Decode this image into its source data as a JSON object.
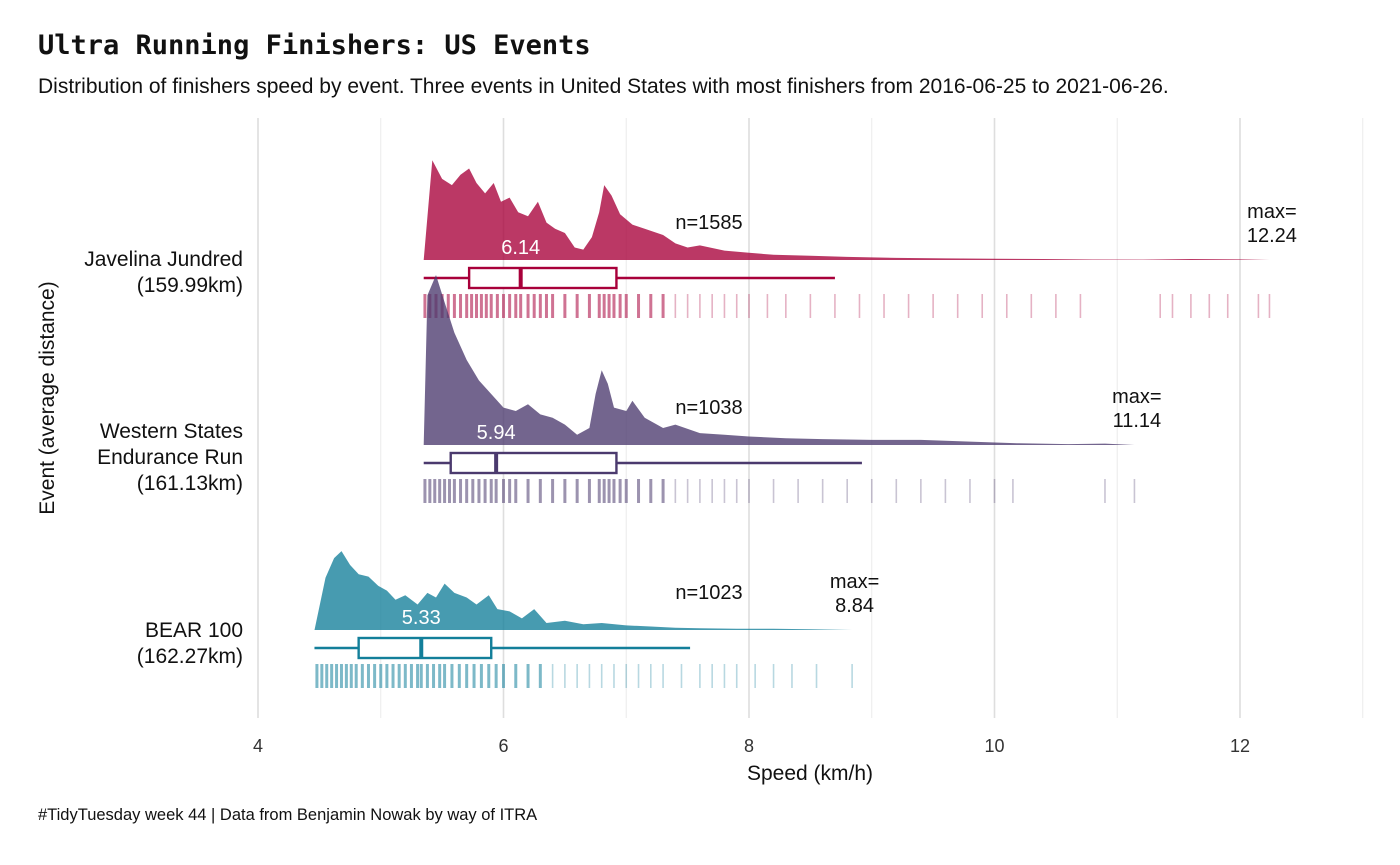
{
  "title": "Ultra Running Finishers: US Events",
  "subtitle": "Distribution of finishers speed by event. Three events in United States with most finishers from 2016-06-25 to 2021-06-26.",
  "caption": "#TidyTuesday week 44 | Data from Benjamin Nowak by way of ITRA",
  "chart_data": {
    "type": "ridgeline",
    "xlabel": "Speed (km/h)",
    "ylabel": "Event (average distance)",
    "xlim": [
      3.6,
      13.0
    ],
    "x_ticks": [
      4,
      6,
      8,
      10,
      12
    ],
    "grid": "vertical",
    "series": [
      {
        "name": "Javelina Jundred",
        "distance": "(159.99km)",
        "color": "#A8003A",
        "n_label": "n=1585",
        "min": 5.35,
        "q1": 5.72,
        "median": 6.14,
        "median_label": "6.14",
        "q3": 6.92,
        "whisker_max": 8.7,
        "max": 12.24,
        "max_label": [
          "max=",
          "12.24"
        ],
        "density": [
          [
            5.35,
            0.0
          ],
          [
            5.42,
            0.96
          ],
          [
            5.5,
            0.78
          ],
          [
            5.58,
            0.72
          ],
          [
            5.65,
            0.82
          ],
          [
            5.72,
            0.88
          ],
          [
            5.78,
            0.74
          ],
          [
            5.85,
            0.64
          ],
          [
            5.92,
            0.74
          ],
          [
            5.98,
            0.56
          ],
          [
            6.05,
            0.6
          ],
          [
            6.12,
            0.46
          ],
          [
            6.2,
            0.42
          ],
          [
            6.28,
            0.56
          ],
          [
            6.35,
            0.36
          ],
          [
            6.42,
            0.3
          ],
          [
            6.5,
            0.26
          ],
          [
            6.58,
            0.12
          ],
          [
            6.65,
            0.1
          ],
          [
            6.72,
            0.22
          ],
          [
            6.78,
            0.46
          ],
          [
            6.82,
            0.72
          ],
          [
            6.88,
            0.62
          ],
          [
            6.95,
            0.44
          ],
          [
            7.05,
            0.34
          ],
          [
            7.15,
            0.3
          ],
          [
            7.3,
            0.24
          ],
          [
            7.4,
            0.16
          ],
          [
            7.5,
            0.12
          ],
          [
            7.6,
            0.14
          ],
          [
            7.8,
            0.09
          ],
          [
            8.0,
            0.07
          ],
          [
            8.2,
            0.05
          ],
          [
            8.5,
            0.04
          ],
          [
            8.8,
            0.03
          ],
          [
            9.2,
            0.02
          ],
          [
            9.6,
            0.015
          ],
          [
            10.0,
            0.012
          ],
          [
            10.4,
            0.01
          ],
          [
            10.8,
            0.005
          ],
          [
            11.2,
            0.004
          ],
          [
            11.6,
            0.01
          ],
          [
            12.0,
            0.006
          ],
          [
            12.24,
            0.0
          ]
        ],
        "rug": [
          5.36,
          5.4,
          5.45,
          5.5,
          5.55,
          5.6,
          5.65,
          5.7,
          5.74,
          5.78,
          5.82,
          5.86,
          5.9,
          5.95,
          6.0,
          6.05,
          6.1,
          6.14,
          6.2,
          6.25,
          6.3,
          6.35,
          6.4,
          6.5,
          6.6,
          6.7,
          6.78,
          6.82,
          6.86,
          6.9,
          6.95,
          7.0,
          7.1,
          7.2,
          7.3,
          7.4,
          7.5,
          7.6,
          7.7,
          7.8,
          7.9,
          8.0,
          8.15,
          8.3,
          8.5,
          8.7,
          8.9,
          9.1,
          9.3,
          9.5,
          9.7,
          9.9,
          10.1,
          10.3,
          10.5,
          10.7,
          11.35,
          11.45,
          11.6,
          11.75,
          11.9,
          12.15,
          12.24
        ]
      },
      {
        "name": "Western States Endurance Run",
        "distance": "(161.13km)",
        "color": "#4B3A6E",
        "n_label": "n=1038",
        "min": 5.35,
        "q1": 5.57,
        "median": 5.94,
        "median_label": "5.94",
        "q3": 6.92,
        "whisker_max": 8.92,
        "max": 11.14,
        "max_label": [
          "max=",
          "11.14"
        ],
        "density": [
          [
            5.35,
            0.0
          ],
          [
            5.38,
            0.88
          ],
          [
            5.45,
            1.0
          ],
          [
            5.52,
            0.84
          ],
          [
            5.6,
            0.66
          ],
          [
            5.7,
            0.5
          ],
          [
            5.8,
            0.38
          ],
          [
            5.9,
            0.3
          ],
          [
            6.0,
            0.22
          ],
          [
            6.1,
            0.2
          ],
          [
            6.2,
            0.24
          ],
          [
            6.3,
            0.18
          ],
          [
            6.4,
            0.16
          ],
          [
            6.5,
            0.12
          ],
          [
            6.6,
            0.06
          ],
          [
            6.7,
            0.1
          ],
          [
            6.75,
            0.3
          ],
          [
            6.8,
            0.44
          ],
          [
            6.85,
            0.36
          ],
          [
            6.9,
            0.22
          ],
          [
            7.0,
            0.2
          ],
          [
            7.05,
            0.26
          ],
          [
            7.15,
            0.16
          ],
          [
            7.3,
            0.1
          ],
          [
            7.4,
            0.12
          ],
          [
            7.6,
            0.07
          ],
          [
            7.8,
            0.06
          ],
          [
            8.0,
            0.05
          ],
          [
            8.3,
            0.04
          ],
          [
            8.6,
            0.035
          ],
          [
            9.0,
            0.03
          ],
          [
            9.4,
            0.03
          ],
          [
            9.8,
            0.02
          ],
          [
            10.2,
            0.01
          ],
          [
            10.6,
            0.005
          ],
          [
            10.9,
            0.008
          ],
          [
            11.14,
            0.0
          ]
        ],
        "rug": [
          5.36,
          5.4,
          5.44,
          5.48,
          5.52,
          5.56,
          5.6,
          5.65,
          5.7,
          5.75,
          5.8,
          5.85,
          5.9,
          5.94,
          6.0,
          6.05,
          6.1,
          6.2,
          6.3,
          6.4,
          6.5,
          6.6,
          6.7,
          6.78,
          6.82,
          6.86,
          6.9,
          6.95,
          7.0,
          7.1,
          7.2,
          7.3,
          7.4,
          7.5,
          7.6,
          7.7,
          7.8,
          7.9,
          8.0,
          8.2,
          8.4,
          8.6,
          8.8,
          9.0,
          9.2,
          9.4,
          9.6,
          9.8,
          10.0,
          10.15,
          10.9,
          11.14
        ]
      },
      {
        "name": "BEAR 100",
        "distance": "(162.27km)",
        "color": "#137F9A",
        "n_label": "n=1023",
        "min": 4.46,
        "q1": 4.82,
        "median": 5.33,
        "median_label": "5.33",
        "q3": 5.9,
        "whisker_max": 7.52,
        "max": 8.84,
        "max_label": [
          "max=",
          "8.84"
        ],
        "density": [
          [
            4.46,
            0.0
          ],
          [
            4.55,
            0.45
          ],
          [
            4.62,
            0.62
          ],
          [
            4.68,
            0.68
          ],
          [
            4.75,
            0.56
          ],
          [
            4.82,
            0.48
          ],
          [
            4.9,
            0.46
          ],
          [
            4.98,
            0.38
          ],
          [
            5.05,
            0.34
          ],
          [
            5.12,
            0.26
          ],
          [
            5.2,
            0.3
          ],
          [
            5.3,
            0.22
          ],
          [
            5.38,
            0.32
          ],
          [
            5.45,
            0.28
          ],
          [
            5.52,
            0.4
          ],
          [
            5.6,
            0.32
          ],
          [
            5.7,
            0.28
          ],
          [
            5.78,
            0.22
          ],
          [
            5.88,
            0.3
          ],
          [
            5.95,
            0.18
          ],
          [
            6.05,
            0.16
          ],
          [
            6.15,
            0.1
          ],
          [
            6.25,
            0.18
          ],
          [
            6.35,
            0.06
          ],
          [
            6.5,
            0.08
          ],
          [
            6.65,
            0.05
          ],
          [
            6.8,
            0.06
          ],
          [
            7.0,
            0.04
          ],
          [
            7.2,
            0.03
          ],
          [
            7.4,
            0.02
          ],
          [
            7.6,
            0.015
          ],
          [
            7.9,
            0.01
          ],
          [
            8.2,
            0.01
          ],
          [
            8.5,
            0.006
          ],
          [
            8.84,
            0.0
          ]
        ],
        "rug": [
          4.48,
          4.52,
          4.56,
          4.6,
          4.64,
          4.68,
          4.72,
          4.76,
          4.8,
          4.85,
          4.9,
          4.95,
          5.0,
          5.05,
          5.1,
          5.15,
          5.2,
          5.25,
          5.3,
          5.33,
          5.38,
          5.43,
          5.48,
          5.52,
          5.58,
          5.64,
          5.7,
          5.76,
          5.82,
          5.88,
          5.94,
          6.0,
          6.1,
          6.2,
          6.3,
          6.4,
          6.5,
          6.6,
          6.7,
          6.8,
          6.9,
          7.0,
          7.1,
          7.2,
          7.3,
          7.45,
          7.6,
          7.7,
          7.8,
          7.9,
          8.05,
          8.2,
          8.35,
          8.55,
          8.84
        ]
      }
    ]
  }
}
